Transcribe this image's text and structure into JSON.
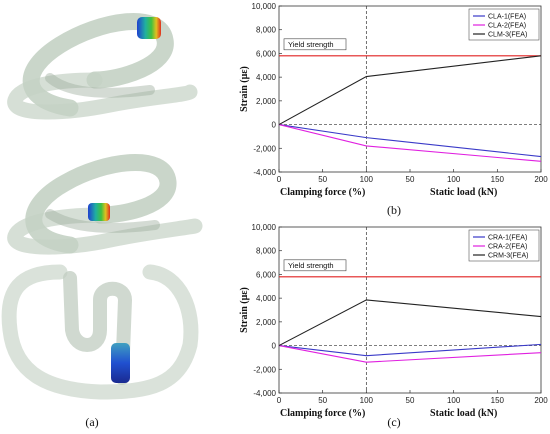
{
  "captions": {
    "a": "(a)",
    "b": "(b)",
    "c": "(c)"
  },
  "colors": {
    "series1": "#3a3ac8",
    "series2": "#e020e0",
    "series3": "#222222",
    "yield": "#e02020"
  },
  "chart_data": [
    {
      "type": "line",
      "ylabel": "Strain (με)",
      "xlabel_left": "Clamping force (%)",
      "xlabel_right": "Static load (kN)",
      "x_ticks": [
        "0",
        "50",
        "100",
        "50",
        "100",
        "150",
        "200"
      ],
      "y_ticks": [
        "10,000",
        "8,000",
        "6,000",
        "4,000",
        "2,000",
        "0",
        "-2,000",
        "-4,000"
      ],
      "ylim": [
        -4000,
        10000
      ],
      "yield_label": "Yield strength",
      "yield_value": 5800,
      "legend_position": "top-right",
      "series": [
        {
          "name": "CLA-1(FEA)",
          "values": [
            0,
            -1100,
            -2700
          ]
        },
        {
          "name": "CLA-2(FEA)",
          "values": [
            0,
            -1800,
            -3100
          ]
        },
        {
          "name": "CLM-3(FEA)",
          "values": [
            0,
            4050,
            5800
          ]
        }
      ]
    },
    {
      "type": "line",
      "ylabel": "Strain (με)",
      "xlabel_left": "Clamping force (%)",
      "xlabel_right": "Static load (kN)",
      "x_ticks": [
        "0",
        "50",
        "100",
        "50",
        "100",
        "150",
        "200"
      ],
      "y_ticks": [
        "10,000",
        "8,000",
        "6,000",
        "4,000",
        "2,000",
        "0",
        "-2,000",
        "-4,000"
      ],
      "ylim": [
        -4000,
        10000
      ],
      "yield_label": "Yield strength",
      "yield_value": 5800,
      "legend_position": "top-right",
      "series": [
        {
          "name": "CRA-1(FEA)",
          "values": [
            0,
            -850,
            100
          ]
        },
        {
          "name": "CRA-2(FEA)",
          "values": [
            0,
            -1400,
            -600
          ]
        },
        {
          "name": "CRM-3(FEA)",
          "values": [
            0,
            3850,
            2450
          ]
        }
      ]
    }
  ]
}
